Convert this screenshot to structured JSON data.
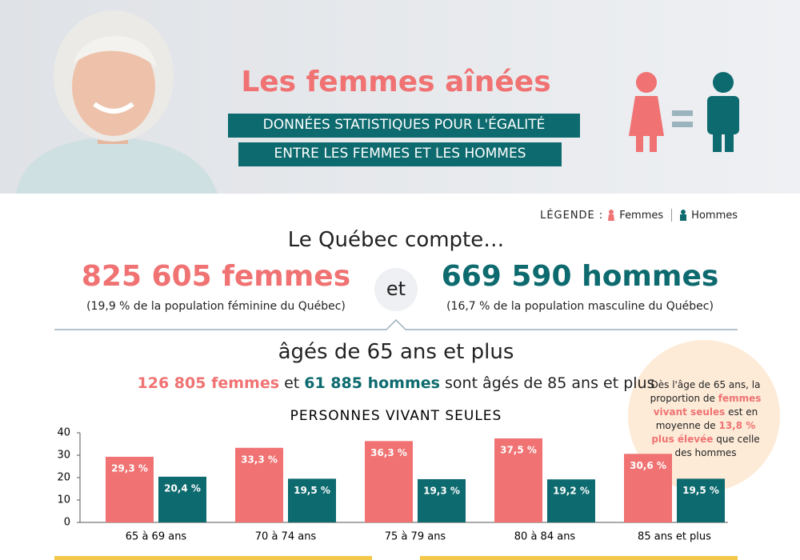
{
  "header": {
    "title": "Les femmes aînées",
    "subtitle_lines": [
      "DONNÉES STATISTIQUES POUR L'ÉGALITÉ",
      "ENTRE LES FEMMES ET LES HOMMES"
    ]
  },
  "legend": {
    "label": "LÉGENDE :"
  },
  "intro": "Le Québec compte…",
  "women": {
    "total": "825 605 femmes",
    "note": "(19,9 % de la population féminine du Québec)"
  },
  "connector": "et",
  "men": {
    "total": "669 590 hommes",
    "note": "(16,7 % de la population masculine du Québec)"
  },
  "age_line": "âgés de 65 ans et plus",
  "oldest": {
    "women": "126 805 femmes",
    "connector": "et",
    "men": "61 885 hommes",
    "rest": "sont âgés de 85 ans et plus"
  },
  "callout": [
    "Dès l'âge de 65 ans, la proportion de",
    "femmes vivant seules",
    "est en moyenne de",
    "13,8 %",
    "plus élevée",
    "que celle des hommes"
  ],
  "chart_data": {
    "type": "bar",
    "title": "PERSONNES VIVANT SEULES",
    "categories": [
      "65 à 69 ans",
      "70 à 74 ans",
      "75 à 79 ans",
      "80 à 84 ans",
      "85 ans et plus"
    ],
    "series": [
      {
        "name": "Femmes",
        "color": "#f07272",
        "values": [
          29.3,
          33.3,
          36.3,
          37.5,
          30.6
        ],
        "value_labels": [
          "29,3 %",
          "33,3 %",
          "36,3 %",
          "37,5 %",
          "30,6 %"
        ]
      },
      {
        "name": "Hommes",
        "color": "#0d6a6e",
        "values": [
          20.4,
          19.5,
          19.3,
          19.2,
          19.5
        ],
        "value_labels": [
          "20,4 %",
          "19,5 %",
          "19,3 %",
          "19,2 %",
          "19,5 %"
        ]
      }
    ],
    "ylim": [
      0,
      40
    ],
    "yticks": [
      0,
      10,
      20,
      30,
      40
    ]
  }
}
